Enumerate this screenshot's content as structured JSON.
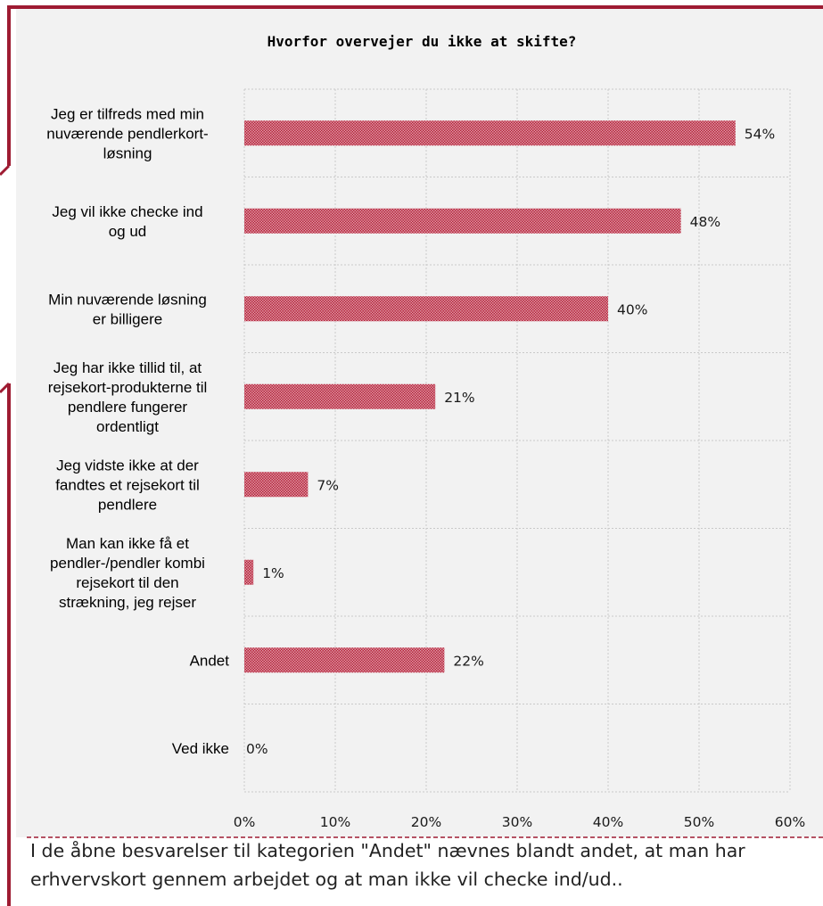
{
  "note": {
    "text": "I de åbne besvarelser til kategorien \"Andet\" nævnes blandt andet, at man har erhvervskort gennem arbejdet og at man ikke vil checke ind/ud.."
  },
  "colors": {
    "bar": "#b5213a",
    "frame": "#9e1b32",
    "plot_bg": "#f2f2f2",
    "grid": "#c9c9c9"
  },
  "chart_data": {
    "type": "bar",
    "orientation": "horizontal",
    "title": "Hvorfor overvejer du ikke at skifte?",
    "categories": [
      [
        "Jeg er tilfreds med min",
        "nuværende pendlerkort-",
        "løsning"
      ],
      [
        "Jeg vil ikke checke ind",
        "og ud"
      ],
      [
        "Min nuværende løsning",
        "er billigere"
      ],
      [
        "Jeg har ikke tillid til, at",
        "rejsekort-produkterne til",
        "pendlere fungerer",
        "ordentligt"
      ],
      [
        "Jeg vidste ikke at der",
        "fandtes et rejsekort til",
        "pendlere"
      ],
      [
        "Man kan ikke få et",
        "pendler-/pendler kombi",
        "rejsekort til den",
        "strækning, jeg rejser"
      ],
      [
        "Andet"
      ],
      [
        "Ved ikke"
      ]
    ],
    "values": [
      54,
      48,
      40,
      21,
      7,
      1,
      22,
      0
    ],
    "value_labels": [
      "54%",
      "48%",
      "40%",
      "21%",
      "7%",
      "1%",
      "22%",
      "0%"
    ],
    "xlim": [
      0,
      60
    ],
    "xticks": [
      0,
      10,
      20,
      30,
      40,
      50,
      60
    ],
    "xtick_labels": [
      "0%",
      "10%",
      "20%",
      "30%",
      "40%",
      "50%",
      "60%"
    ],
    "grid": true,
    "bar_fill": "crosshatch"
  }
}
